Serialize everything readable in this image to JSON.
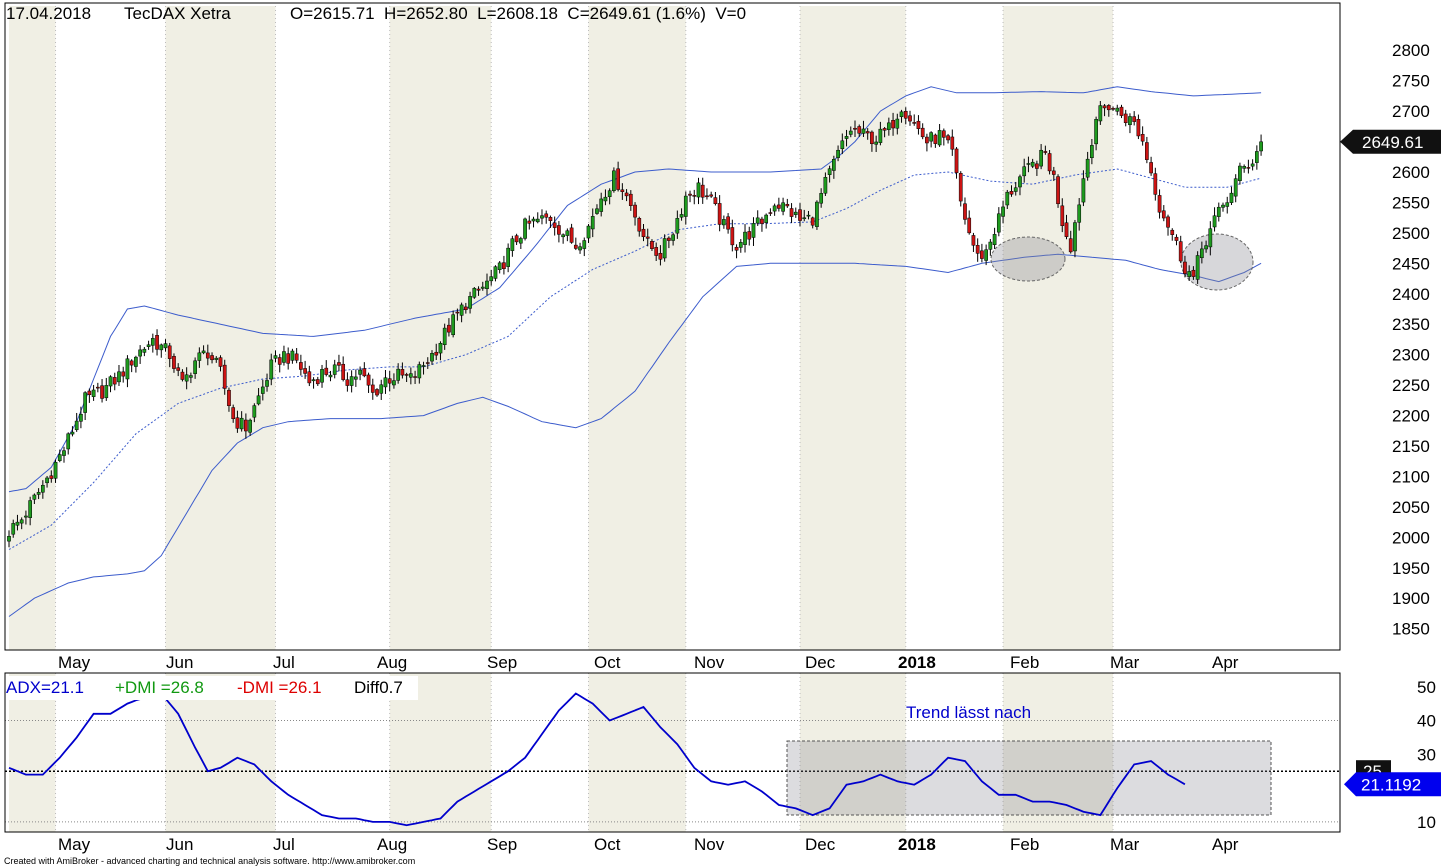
{
  "header": {
    "date": "17.04.2018",
    "symbol": "TecDAX Xetra",
    "ohlc": "O=2615.71  H=2652.80  L=2608.18  C=2649.61 (1.6%)  V=0"
  },
  "footer": "Created with AmiBroker - advanced charting and technical analysis software. http://www.amibroker.com",
  "colors": {
    "up": "#1e9a1e",
    "down": "#cc1414",
    "band": "#3c5ccc",
    "adx": "#0000cc",
    "pos_dmi": "#119911",
    "neg_dmi": "#dd0000",
    "month_shade": "#f0efe4",
    "grid": "#bbbbbb"
  },
  "chart_data": [
    {
      "type": "candlestick",
      "name": "price",
      "months": [
        "May",
        "Jun",
        "Jul",
        "Aug",
        "Sep",
        "Oct",
        "Nov",
        "Dec",
        "2018",
        "Feb",
        "Mar",
        "Apr"
      ],
      "y_ticks": [
        2800,
        2750,
        2700,
        2650,
        2600,
        2550,
        2500,
        2450,
        2400,
        2350,
        2300,
        2250,
        2200,
        2150,
        2100,
        2050,
        2000,
        1950,
        1900,
        1850
      ],
      "ylim": [
        1815,
        2825
      ],
      "last_close_label": "2649.61",
      "close_path": [
        [
          0,
          2010
        ],
        [
          3,
          2030
        ],
        [
          8,
          2085
        ],
        [
          13,
          2145
        ],
        [
          18,
          2225
        ],
        [
          22,
          2240
        ],
        [
          26,
          2265
        ],
        [
          30,
          2300
        ],
        [
          34,
          2325
        ],
        [
          38,
          2300
        ],
        [
          41,
          2250
        ],
        [
          44,
          2290
        ],
        [
          47,
          2305
        ],
        [
          50,
          2270
        ],
        [
          53,
          2195
        ],
        [
          56,
          2180
        ],
        [
          59,
          2230
        ],
        [
          62,
          2280
        ],
        [
          65,
          2300
        ],
        [
          68,
          2290
        ],
        [
          71,
          2255
        ],
        [
          74,
          2270
        ],
        [
          77,
          2275
        ],
        [
          80,
          2260
        ],
        [
          83,
          2270
        ],
        [
          86,
          2235
        ],
        [
          89,
          2260
        ],
        [
          92,
          2265
        ],
        [
          95,
          2260
        ],
        [
          97,
          2275
        ],
        [
          100,
          2300
        ],
        [
          104,
          2345
        ],
        [
          108,
          2385
        ],
        [
          112,
          2410
        ],
        [
          116,
          2440
        ],
        [
          119,
          2480
        ],
        [
          122,
          2510
        ],
        [
          125,
          2520
        ],
        [
          128,
          2525
        ],
        [
          131,
          2500
        ],
        [
          134,
          2480
        ],
        [
          137,
          2510
        ],
        [
          140,
          2560
        ],
        [
          143,
          2590
        ],
        [
          145,
          2575
        ],
        [
          148,
          2530
        ],
        [
          151,
          2480
        ],
        [
          154,
          2465
        ],
        [
          157,
          2505
        ],
        [
          160,
          2560
        ],
        [
          163,
          2575
        ],
        [
          166,
          2550
        ],
        [
          169,
          2510
        ],
        [
          172,
          2480
        ],
        [
          175,
          2500
        ],
        [
          178,
          2520
        ],
        [
          181,
          2550
        ],
        [
          184,
          2540
        ],
        [
          187,
          2520
        ],
        [
          190,
          2525
        ],
        [
          193,
          2580
        ],
        [
          196,
          2630
        ],
        [
          199,
          2670
        ],
        [
          202,
          2660
        ],
        [
          205,
          2655
        ],
        [
          208,
          2670
        ],
        [
          211,
          2710
        ],
        [
          214,
          2680
        ],
        [
          217,
          2650
        ],
        [
          220,
          2660
        ],
        [
          223,
          2630
        ],
        [
          225,
          2550
        ],
        [
          227,
          2500
        ],
        [
          229,
          2460
        ],
        [
          231,
          2470
        ],
        [
          233,
          2505
        ],
        [
          236,
          2560
        ],
        [
          239,
          2590
        ],
        [
          242,
          2610
        ],
        [
          245,
          2630
        ],
        [
          247,
          2590
        ],
        [
          249,
          2520
        ],
        [
          251,
          2480
        ],
        [
          254,
          2590
        ],
        [
          257,
          2690
        ],
        [
          260,
          2710
        ],
        [
          263,
          2695
        ],
        [
          266,
          2680
        ],
        [
          268,
          2650
        ],
        [
          270,
          2600
        ],
        [
          272,
          2545
        ],
        [
          274,
          2515
        ],
        [
          276,
          2480
        ],
        [
          278,
          2445
        ],
        [
          280,
          2425
        ],
        [
          282,
          2475
        ],
        [
          285,
          2520
        ],
        [
          288,
          2555
        ],
        [
          291,
          2600
        ],
        [
          294,
          2620
        ],
        [
          296,
          2649.61
        ]
      ],
      "upper_band_path": [
        [
          0,
          2075
        ],
        [
          4,
          2080
        ],
        [
          10,
          2115
        ],
        [
          16,
          2190
        ],
        [
          20,
          2260
        ],
        [
          24,
          2330
        ],
        [
          28,
          2375
        ],
        [
          32,
          2380
        ],
        [
          40,
          2365
        ],
        [
          50,
          2350
        ],
        [
          60,
          2335
        ],
        [
          72,
          2330
        ],
        [
          84,
          2340
        ],
        [
          96,
          2360
        ],
        [
          108,
          2375
        ],
        [
          116,
          2410
        ],
        [
          124,
          2475
        ],
        [
          132,
          2545
        ],
        [
          140,
          2580
        ],
        [
          148,
          2600
        ],
        [
          156,
          2605
        ],
        [
          166,
          2600
        ],
        [
          180,
          2600
        ],
        [
          192,
          2605
        ],
        [
          196,
          2625
        ],
        [
          200,
          2650
        ],
        [
          206,
          2700
        ],
        [
          212,
          2725
        ],
        [
          218,
          2740
        ],
        [
          224,
          2730
        ],
        [
          232,
          2730
        ],
        [
          244,
          2732
        ],
        [
          254,
          2730
        ],
        [
          262,
          2740
        ],
        [
          270,
          2732
        ],
        [
          280,
          2725
        ],
        [
          296,
          2730
        ]
      ],
      "mid_band_path": [
        [
          0,
          1980
        ],
        [
          10,
          2020
        ],
        [
          20,
          2090
        ],
        [
          30,
          2170
        ],
        [
          40,
          2220
        ],
        [
          50,
          2245
        ],
        [
          60,
          2260
        ],
        [
          70,
          2265
        ],
        [
          80,
          2275
        ],
        [
          90,
          2280
        ],
        [
          98,
          2280
        ],
        [
          108,
          2300
        ],
        [
          118,
          2330
        ],
        [
          128,
          2395
        ],
        [
          138,
          2440
        ],
        [
          148,
          2470
        ],
        [
          158,
          2505
        ],
        [
          168,
          2515
        ],
        [
          178,
          2515
        ],
        [
          190,
          2518
        ],
        [
          198,
          2540
        ],
        [
          206,
          2570
        ],
        [
          214,
          2595
        ],
        [
          222,
          2600
        ],
        [
          232,
          2585
        ],
        [
          242,
          2580
        ],
        [
          252,
          2595
        ],
        [
          262,
          2605
        ],
        [
          270,
          2590
        ],
        [
          278,
          2575
        ],
        [
          288,
          2575
        ],
        [
          296,
          2590
        ]
      ],
      "lower_band_path": [
        [
          0,
          1870
        ],
        [
          6,
          1900
        ],
        [
          14,
          1925
        ],
        [
          20,
          1935
        ],
        [
          28,
          1940
        ],
        [
          32,
          1945
        ],
        [
          36,
          1970
        ],
        [
          42,
          2040
        ],
        [
          48,
          2110
        ],
        [
          54,
          2155
        ],
        [
          60,
          2180
        ],
        [
          66,
          2190
        ],
        [
          76,
          2195
        ],
        [
          88,
          2195
        ],
        [
          98,
          2200
        ],
        [
          106,
          2220
        ],
        [
          112,
          2230
        ],
        [
          118,
          2215
        ],
        [
          126,
          2190
        ],
        [
          134,
          2180
        ],
        [
          140,
          2195
        ],
        [
          148,
          2240
        ],
        [
          156,
          2320
        ],
        [
          164,
          2395
        ],
        [
          172,
          2445
        ],
        [
          180,
          2450
        ],
        [
          190,
          2450
        ],
        [
          200,
          2450
        ],
        [
          212,
          2445
        ],
        [
          222,
          2435
        ],
        [
          230,
          2450
        ],
        [
          240,
          2460
        ],
        [
          248,
          2465
        ],
        [
          256,
          2460
        ],
        [
          264,
          2455
        ],
        [
          272,
          2440
        ],
        [
          280,
          2430
        ],
        [
          286,
          2420
        ],
        [
          292,
          2435
        ],
        [
          296,
          2450
        ]
      ]
    },
    {
      "type": "line",
      "name": "adx",
      "labels": {
        "adx": "ADX=21.1",
        "pos_dmi": "+DMI =26.8",
        "neg_dmi": "-DMI =26.1",
        "diff": "Diff0.7"
      },
      "annotation": "Trend lässt nach",
      "y_ticks": [
        50,
        40,
        30,
        10
      ],
      "ylim": [
        7,
        52
      ],
      "threshold_label": "25",
      "threshold": 25,
      "last_value_label": "21.1192",
      "path": [
        [
          0,
          26
        ],
        [
          4,
          24
        ],
        [
          8,
          24
        ],
        [
          12,
          29
        ],
        [
          16,
          35
        ],
        [
          20,
          42
        ],
        [
          24,
          42
        ],
        [
          28,
          45
        ],
        [
          30,
          46
        ],
        [
          36,
          48
        ],
        [
          40,
          42
        ],
        [
          44,
          32
        ],
        [
          47,
          25
        ],
        [
          50,
          26
        ],
        [
          54,
          29
        ],
        [
          58,
          27
        ],
        [
          62,
          22
        ],
        [
          66,
          18
        ],
        [
          70,
          15
        ],
        [
          74,
          12
        ],
        [
          78,
          11
        ],
        [
          82,
          11
        ],
        [
          86,
          10
        ],
        [
          90,
          10
        ],
        [
          94,
          9
        ],
        [
          98,
          10
        ],
        [
          102,
          11
        ],
        [
          106,
          16
        ],
        [
          110,
          19
        ],
        [
          114,
          22
        ],
        [
          118,
          25
        ],
        [
          122,
          29
        ],
        [
          126,
          36
        ],
        [
          130,
          43
        ],
        [
          134,
          48
        ],
        [
          138,
          45
        ],
        [
          142,
          40
        ],
        [
          146,
          42
        ],
        [
          150,
          44
        ],
        [
          154,
          38
        ],
        [
          158,
          33
        ],
        [
          162,
          26
        ],
        [
          166,
          22
        ],
        [
          170,
          21
        ],
        [
          174,
          22
        ],
        [
          178,
          19
        ],
        [
          182,
          15
        ],
        [
          186,
          14
        ],
        [
          190,
          12
        ],
        [
          194,
          14
        ],
        [
          198,
          21
        ],
        [
          202,
          22
        ],
        [
          206,
          24
        ],
        [
          210,
          22
        ],
        [
          214,
          21
        ],
        [
          218,
          24
        ],
        [
          222,
          29
        ],
        [
          226,
          28
        ],
        [
          230,
          22
        ],
        [
          234,
          18
        ],
        [
          238,
          18
        ],
        [
          242,
          16
        ],
        [
          246,
          16
        ],
        [
          250,
          15
        ],
        [
          254,
          13
        ],
        [
          258,
          12
        ],
        [
          262,
          20
        ],
        [
          266,
          27
        ],
        [
          270,
          28
        ],
        [
          274,
          24
        ],
        [
          278,
          21.1192
        ]
      ]
    }
  ]
}
